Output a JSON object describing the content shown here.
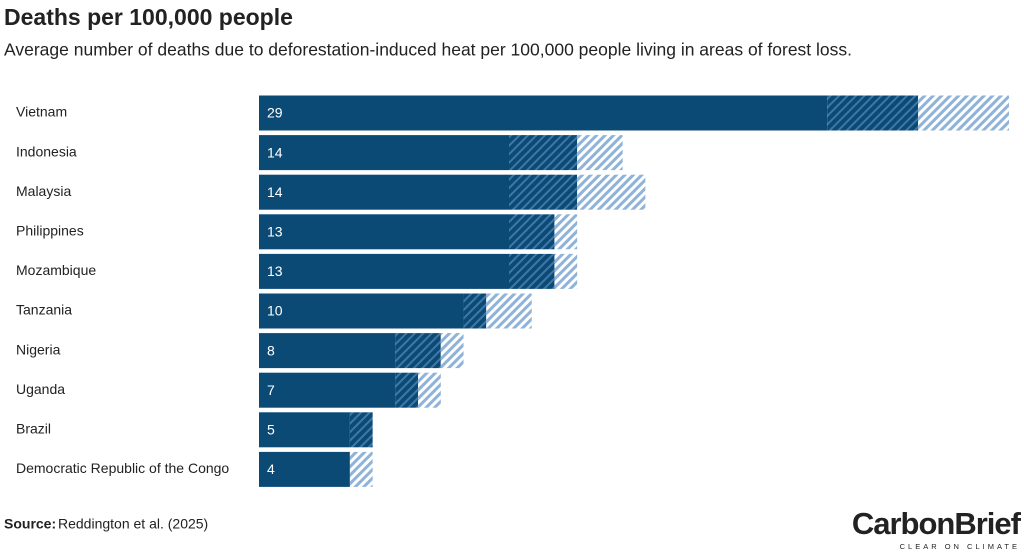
{
  "chart_data": {
    "type": "range_bar",
    "title": "Deaths per 100,000 people",
    "subtitle": "Average number of deaths due to deforestation-induced heat per 100,000 people living in areas of forest loss.",
    "categories": [
      "Vietnam",
      "Indonesia",
      "Malaysia",
      "Philippines",
      "Mozambique",
      "Tanzania",
      "Nigeria",
      "Uganda",
      "Brazil",
      "Democratic Republic of the Congo"
    ],
    "values": [
      29,
      14,
      14,
      13,
      13,
      10,
      8,
      7,
      5,
      4
    ],
    "lower": [
      25,
      11,
      11,
      11,
      11,
      9,
      6,
      6,
      4,
      4
    ],
    "upper": [
      33,
      16,
      17,
      14,
      14,
      12,
      9,
      8,
      5,
      5
    ],
    "color": "#0c4a76",
    "xlim": [
      0,
      33
    ],
    "source": {
      "label": "Source:",
      "text": "Reddington et al. (2025)"
    },
    "logo": {
      "name": "CarbonBrief",
      "tagline": "CLEAR ON CLIMATE"
    }
  }
}
